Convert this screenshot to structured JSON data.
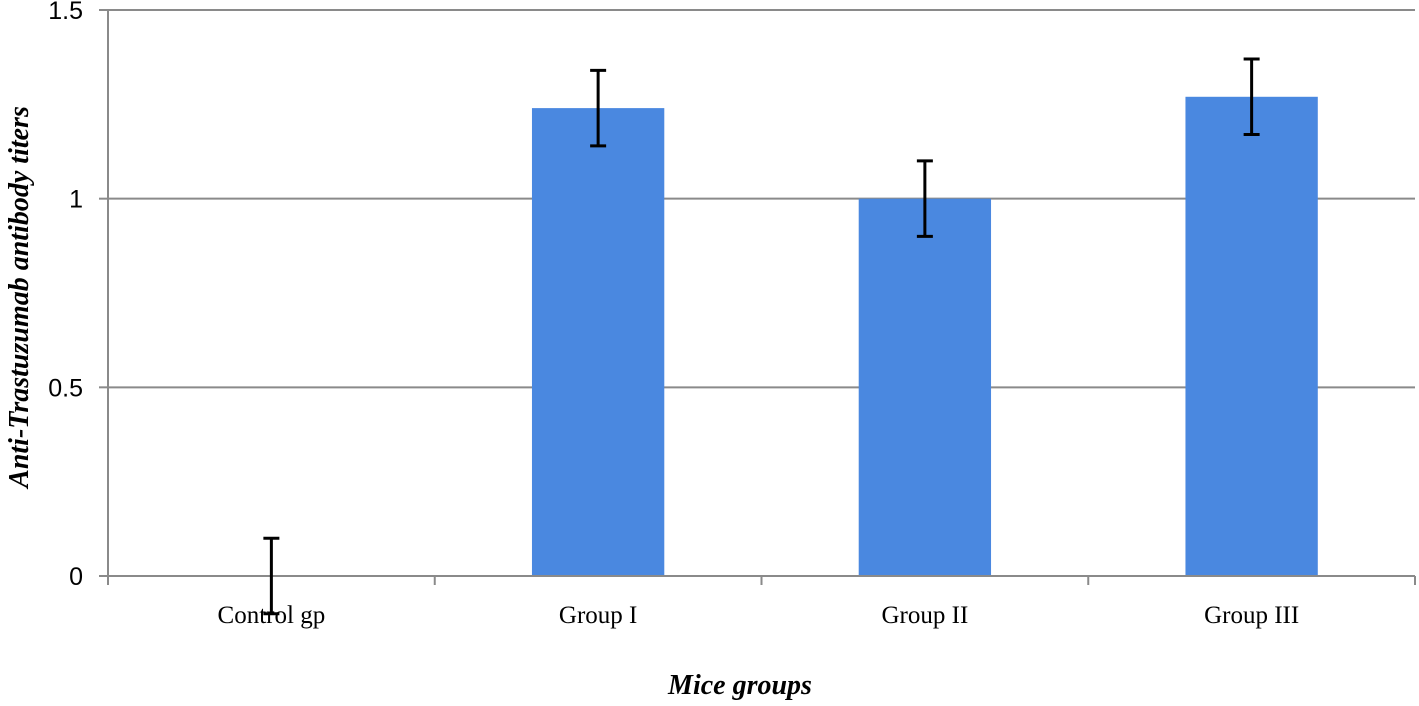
{
  "chart_data": {
    "type": "bar",
    "title": "",
    "xlabel": "Mice groups",
    "ylabel": "Anti-Trastuzumab antibody titers",
    "categories": [
      "Control gp",
      "Group I",
      "Group II",
      "Group III"
    ],
    "values": [
      0,
      1.24,
      1.0,
      1.27
    ],
    "error": [
      0.1,
      0.1,
      0.1,
      0.1
    ],
    "ylim": [
      0,
      1.5
    ],
    "yticks": [
      0,
      0.5,
      1,
      1.5
    ],
    "ytick_labels": [
      "0",
      "0.5",
      "1",
      "1.5"
    ],
    "grid": true,
    "legend": "none",
    "colors": {
      "bar": "#4a88e0",
      "grid": "#8a8a8a",
      "axis": "#8a8a8a",
      "error_bar": "#000000"
    }
  }
}
